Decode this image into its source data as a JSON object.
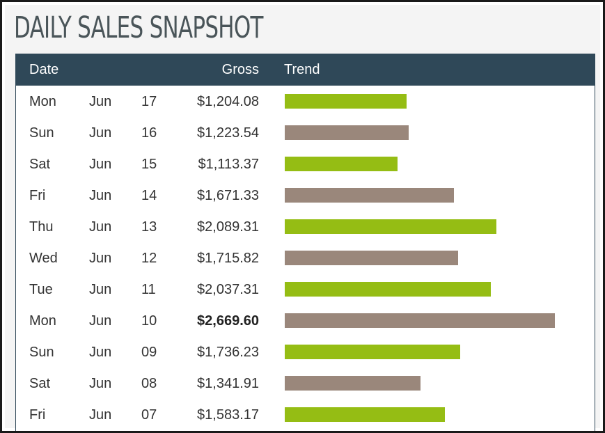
{
  "title": "DAILY SALES SNAPSHOT",
  "colors": {
    "header_bg": "#2f4858",
    "bar_green": "#95bd14",
    "bar_taupe": "#9a877b",
    "title": "#4a5559"
  },
  "headers": {
    "date": "Date",
    "gross": "Gross",
    "trend": "Trend"
  },
  "rows": [
    {
      "dow": "Mon",
      "month": "Jun",
      "day": "17",
      "gross": "$1,204.08",
      "value": 1204.08,
      "color": "green",
      "best": false
    },
    {
      "dow": "Sun",
      "month": "Jun",
      "day": "16",
      "gross": "$1,223.54",
      "value": 1223.54,
      "color": "taupe",
      "best": false
    },
    {
      "dow": "Sat",
      "month": "Jun",
      "day": "15",
      "gross": "$1,113.37",
      "value": 1113.37,
      "color": "green",
      "best": false
    },
    {
      "dow": "Fri",
      "month": "Jun",
      "day": "14",
      "gross": "$1,671.33",
      "value": 1671.33,
      "color": "taupe",
      "best": false
    },
    {
      "dow": "Thu",
      "month": "Jun",
      "day": "13",
      "gross": "$2,089.31",
      "value": 2089.31,
      "color": "green",
      "best": false
    },
    {
      "dow": "Wed",
      "month": "Jun",
      "day": "12",
      "gross": "$1,715.82",
      "value": 1715.82,
      "color": "taupe",
      "best": false
    },
    {
      "dow": "Tue",
      "month": "Jun",
      "day": "11",
      "gross": "$2,037.31",
      "value": 2037.31,
      "color": "green",
      "best": false
    },
    {
      "dow": "Mon",
      "month": "Jun",
      "day": "10",
      "gross": "$2,669.60",
      "value": 2669.6,
      "color": "taupe",
      "best": true
    },
    {
      "dow": "Sun",
      "month": "Jun",
      "day": "09",
      "gross": "$1,736.23",
      "value": 1736.23,
      "color": "green",
      "best": false
    },
    {
      "dow": "Sat",
      "month": "Jun",
      "day": "08",
      "gross": "$1,341.91",
      "value": 1341.91,
      "color": "taupe",
      "best": false
    },
    {
      "dow": "Fri",
      "month": "Jun",
      "day": "07",
      "gross": "$1,583.17",
      "value": 1583.17,
      "color": "green",
      "best": false
    }
  ],
  "chart_data": {
    "type": "bar",
    "orientation": "horizontal",
    "title": "DAILY SALES SNAPSHOT",
    "categories": [
      "Mon Jun 17",
      "Sun Jun 16",
      "Sat Jun 15",
      "Fri Jun 14",
      "Thu Jun 13",
      "Wed Jun 12",
      "Tue Jun 11",
      "Mon Jun 10",
      "Sun Jun 09",
      "Sat Jun 08",
      "Fri Jun 07"
    ],
    "values": [
      1204.08,
      1223.54,
      1113.37,
      1671.33,
      2089.31,
      1715.82,
      2037.31,
      2669.6,
      1736.23,
      1341.91,
      1583.17
    ],
    "bar_colors": [
      "#95bd14",
      "#9a877b",
      "#95bd14",
      "#9a877b",
      "#95bd14",
      "#9a877b",
      "#95bd14",
      "#9a877b",
      "#95bd14",
      "#9a877b",
      "#95bd14"
    ],
    "xlabel": "",
    "ylabel": "",
    "grid": false,
    "legend": "none"
  }
}
